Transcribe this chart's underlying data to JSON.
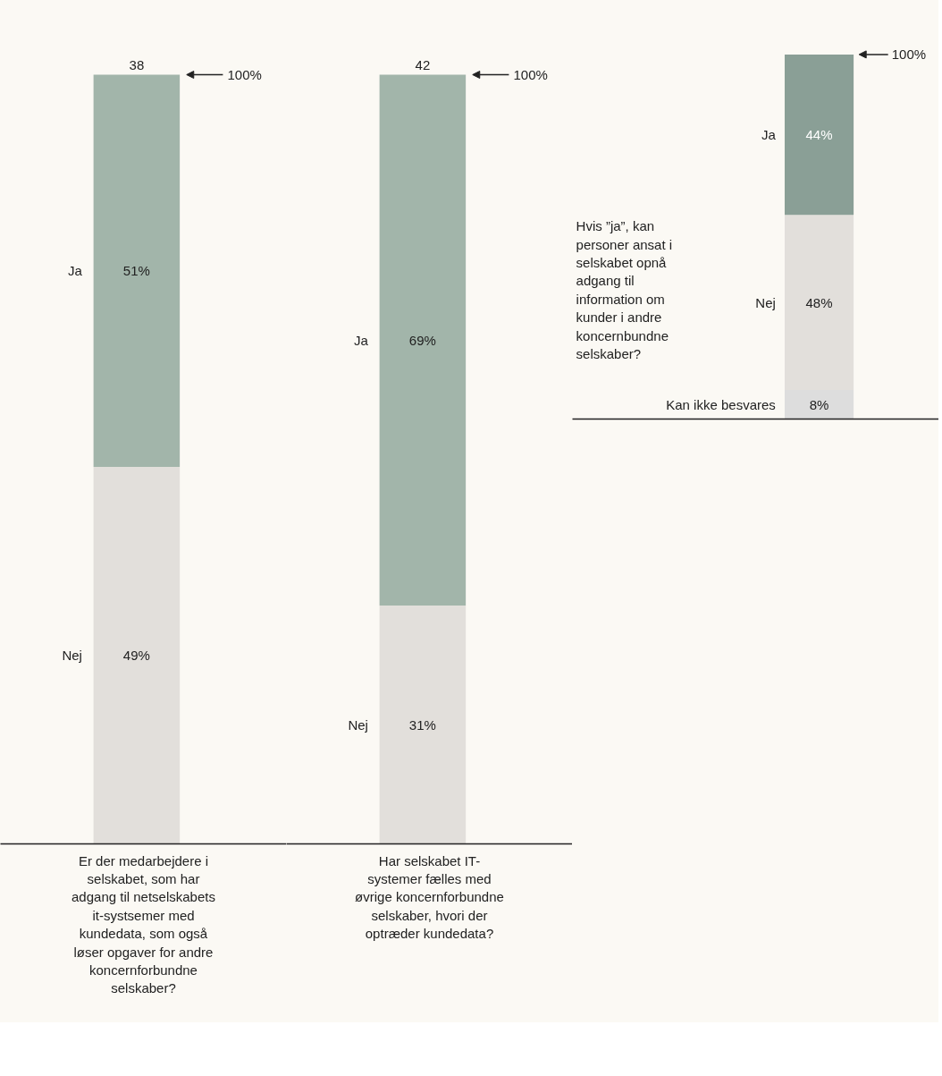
{
  "chart_data": [
    {
      "type": "bar",
      "stacked": true,
      "categories": [
        null
      ],
      "xlabel": "Er der medarbejdere i selskabet, som har adgang til netselskabets it-systsemer med kundedata, som også løser opgaver for andre koncernforbundne selskaber?",
      "annotations": [
        "38",
        "100%"
      ],
      "series": [
        {
          "name": "Nej",
          "color": "#e2dfdb",
          "values": [
            49
          ],
          "value_labels": [
            "49%"
          ]
        },
        {
          "name": "Ja",
          "color": "#a2b5aa",
          "values": [
            51
          ],
          "value_labels": [
            "51%"
          ]
        }
      ]
    },
    {
      "type": "bar",
      "stacked": true,
      "categories": [
        null
      ],
      "xlabel": "Har selskabet IT-systemer fælles med øvrige koncernforbundne selskaber, hvori der optræder kundedata?",
      "annotations": [
        "42",
        "100%"
      ],
      "series": [
        {
          "name": "Nej",
          "color": "#e2dfdb",
          "values": [
            31
          ],
          "value_labels": [
            "31%"
          ]
        },
        {
          "name": "Ja",
          "color": "#a2b5aa",
          "values": [
            69
          ],
          "value_labels": [
            "69%"
          ]
        }
      ]
    },
    {
      "type": "bar",
      "stacked": true,
      "categories": [
        null
      ],
      "annotations": [
        "Hvis ”ja”, kan personer ansat i selskabet opnå adgang til information om kunder i andre koncernbundne selskaber?",
        "100%"
      ],
      "series": [
        {
          "name": "Kan ikke besvares",
          "color": "#dddddd",
          "values": [
            8
          ],
          "value_labels": [
            "8%"
          ]
        },
        {
          "name": "Nej",
          "color": "#e2dfdb",
          "values": [
            48
          ],
          "value_labels": [
            "48%"
          ]
        },
        {
          "name": "Ja",
          "color": "#8a9f96",
          "values": [
            44
          ],
          "value_labels": [
            "44%"
          ]
        }
      ]
    }
  ]
}
